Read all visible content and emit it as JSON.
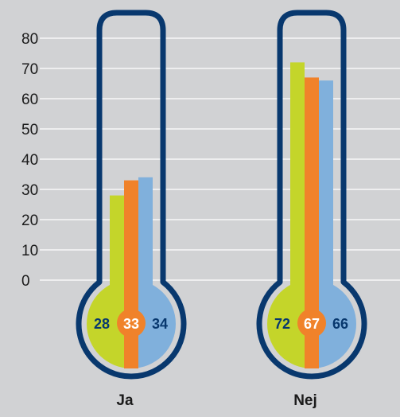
{
  "chart_data": {
    "type": "bar",
    "categories": [
      "Ja",
      "Nej"
    ],
    "series": [
      {
        "values": [
          28,
          72
        ],
        "color": "#c4d52a"
      },
      {
        "values": [
          33,
          67
        ],
        "color": "#f0822a"
      },
      {
        "values": [
          34,
          66
        ],
        "color": "#80b0dc"
      }
    ],
    "ylim": [
      0,
      80
    ],
    "yticks": [
      0,
      10,
      20,
      30,
      40,
      50,
      60,
      70,
      80
    ],
    "grid": true,
    "colors": {
      "background": "#d1d2d4",
      "outline": "#08386e",
      "label_dark": "#08386e",
      "label_light": "#ffffff"
    }
  }
}
